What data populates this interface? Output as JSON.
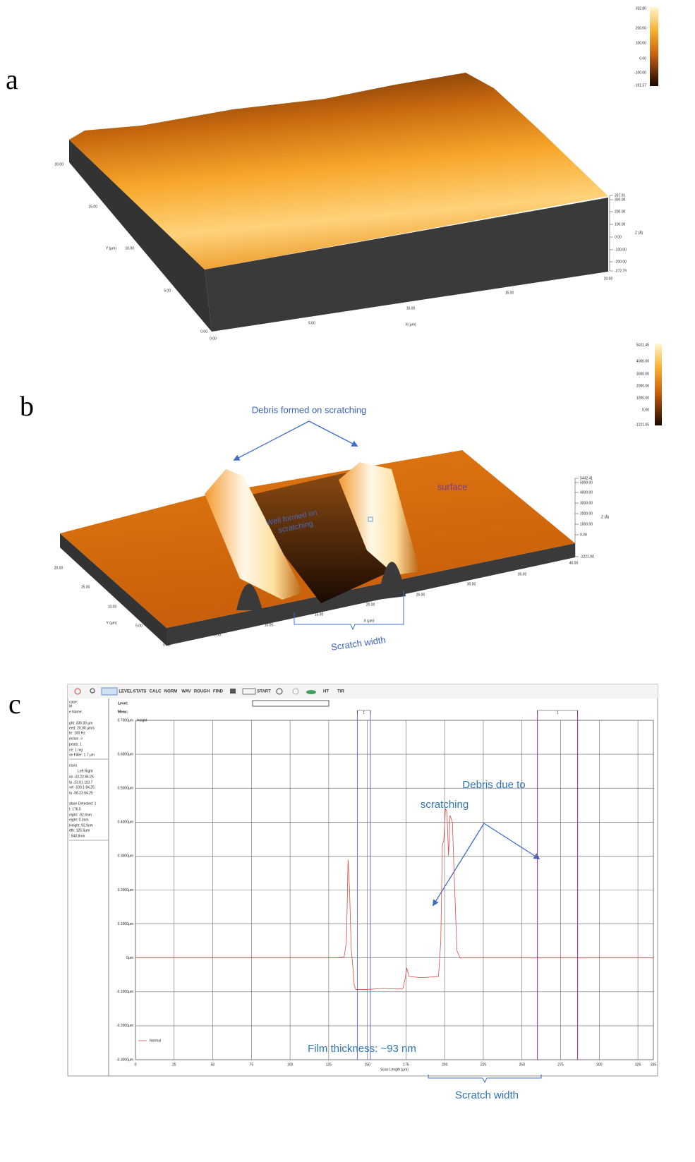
{
  "panels": {
    "a": {
      "label": "a",
      "colorbar_ticks": [
        "332.80",
        "200.00",
        "100.00",
        "0.00",
        "-100.00",
        "-191.57"
      ],
      "y_axis_labels": [
        "20.00",
        "15.00",
        "10.00",
        "5.00",
        "0.00"
      ],
      "y_axis_title": "Y (µm)",
      "x_axis_labels": [
        "0.00",
        "5.00",
        "10.00",
        "15.00",
        "20.00"
      ],
      "x_axis_title": "X (µm)",
      "z_axis_labels": [
        "337.91",
        "300.00",
        "200.00",
        "100.00",
        "0.00",
        "-100.00",
        "-200.00",
        "-272.79"
      ],
      "z_axis_title": "Z (Å)"
    },
    "b": {
      "label": "b",
      "colorbar_ticks": [
        "5021.45",
        "4000.00",
        "3000.00",
        "2000.00",
        "1000.00",
        "0.00",
        "-1221.05"
      ],
      "y_axis_labels": [
        "20.00",
        "15.00",
        "10.00",
        "5.00",
        "0.00"
      ],
      "y_axis_title": "Y (µm)",
      "x_axis_labels": [
        "5.00",
        "10.00",
        "15.00",
        "20.00",
        "25.00",
        "30.00",
        "35.00",
        "40.00"
      ],
      "x_axis_title": "X (µm)",
      "z_axis_labels": [
        "5442.41",
        "5000.00",
        "4000.00",
        "3000.00",
        "2000.00",
        "1000.00",
        "0.00",
        "-1221.00"
      ],
      "z_axis_title": "Z (Å)",
      "annotations": {
        "debris": "Debris formed on scratching",
        "surface": "surface",
        "well": [
          "Well formed on",
          "scratching"
        ],
        "scratch_width": "Scratch width"
      }
    },
    "c": {
      "label": "c",
      "toolbar": [
        "LEVEL",
        "STATS",
        "CALC",
        "NORM",
        "WAV",
        "ROUGH",
        "FIND",
        "START",
        "HT",
        "TIR"
      ],
      "sidebar": [
        "cope:",
        "M",
        "e Name:",
        "ght: 335.00 µm",
        "eed: 20.00 µm/s",
        "te: 100 Hz",
        "ection ->",
        "peats: 1",
        "ce: 1 mg",
        "se Filter: 1.7 µm",
        "rsors",
        "Left  Right",
        "as  -33.22  84.25",
        "ta  -23.01  110.7",
        "vel  -100.1  84.25",
        "ta  -58.23  84.25",
        "ature Detected: 1",
        "t:  176.5",
        "eight: -92.6nm",
        "eight: 0.3nm",
        "Height: 92.9nm",
        "dth:  125.6µm",
        ":  540.8nm"
      ],
      "level_label": "Level:",
      "meas_label": "Meas:",
      "cursor_labels": [
        "1",
        "1"
      ],
      "annotations": {
        "debris": [
          "Debris due to",
          "scratching"
        ],
        "film": "Film thickness: ~93 nm",
        "scratch_width": "Scratch width"
      }
    }
  },
  "chart_data": {
    "type": "line",
    "x_label": "Scan Length (µm)",
    "y_label": "Height",
    "x": [
      0,
      50,
      100,
      130,
      135,
      136.5,
      137.5,
      138.5,
      139.5,
      140.5,
      141.5,
      142.5,
      150,
      160,
      170,
      173,
      174.5,
      175.5,
      177,
      185,
      196,
      197.5,
      198.5,
      199.5,
      200.5,
      201.5,
      202.5,
      203.5,
      205,
      206.5,
      208,
      210,
      250,
      300,
      335
    ],
    "series": [
      {
        "name": "Normal",
        "color": "#e04848",
        "values": [
          0,
          0,
          0,
          0,
          0.003,
          0.05,
          0.29,
          0.2,
          0.03,
          -0.02,
          -0.08,
          -0.093,
          -0.093,
          -0.09,
          -0.092,
          -0.09,
          -0.06,
          -0.03,
          -0.055,
          -0.058,
          -0.055,
          0.05,
          0.33,
          0.35,
          0.44,
          0.43,
          0.3,
          0.42,
          0.4,
          0.2,
          0.02,
          0,
          0,
          0,
          0
        ]
      }
    ],
    "xlim": [
      0,
      335
    ],
    "xticks": [
      0,
      25,
      50,
      75,
      100,
      125,
      150,
      175,
      200,
      225,
      250,
      275,
      300,
      325,
      335
    ],
    "ylim": [
      -0.3,
      0.7
    ],
    "yticks": [
      {
        "value": 0.7,
        "label": "0.7000µm"
      },
      {
        "value": 0.6,
        "label": "0.6000µm"
      },
      {
        "value": 0.5,
        "label": "0.5000µm"
      },
      {
        "value": 0.4,
        "label": "0.4000µm"
      },
      {
        "value": 0.3,
        "label": "0.3000µm"
      },
      {
        "value": 0.2,
        "label": "0.2000µm"
      },
      {
        "value": 0.1,
        "label": "0.1000µm"
      },
      {
        "value": 0,
        "label": "0µm"
      },
      {
        "value": -0.1,
        "label": "-0.1000µm"
      },
      {
        "value": -0.2,
        "label": "-0.2000µm"
      },
      {
        "value": -0.3,
        "label": "-0.3000µm"
      }
    ],
    "grid": true,
    "cursors": [
      {
        "color": "#6a6ad8",
        "x": [
          143.5,
          152
        ]
      },
      {
        "color": "#a0208a",
        "x": [
          260,
          286
        ]
      }
    ]
  }
}
